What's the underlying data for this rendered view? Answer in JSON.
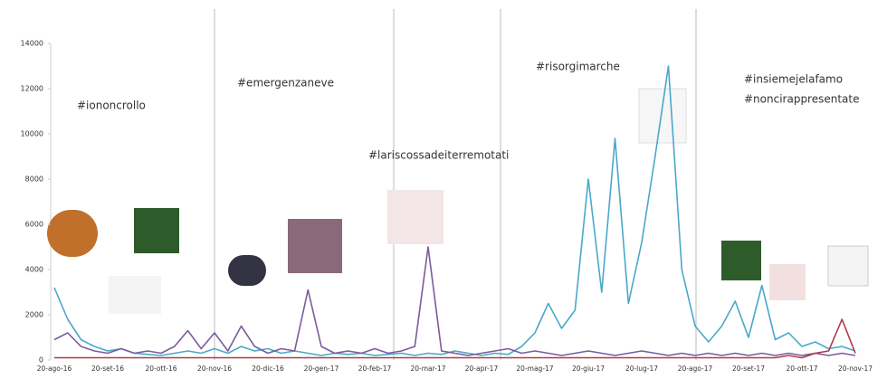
{
  "chart_data": {
    "type": "line",
    "categories": [
      "20-ago-16",
      null,
      null,
      null,
      "20-set-16",
      null,
      null,
      null,
      "20-ott-16",
      null,
      null,
      null,
      "20-nov-16",
      null,
      null,
      null,
      "20-dic-16",
      null,
      null,
      null,
      "20-gen-17",
      null,
      null,
      null,
      "20-feb-17",
      null,
      null,
      null,
      "20-mar-17",
      null,
      null,
      null,
      "20-apr-17",
      null,
      null,
      null,
      "20-mag-17",
      null,
      null,
      null,
      "20-giu-17",
      null,
      null,
      null,
      "20-lug-17",
      null,
      null,
      null,
      "20-ago-17",
      null,
      null,
      null,
      "20-set-17",
      null,
      null,
      null,
      "20-ott-17",
      null,
      null,
      null,
      "20-nov-17"
    ],
    "series": [
      {
        "color": "#4aa8c8",
        "values": [
          3200,
          1800,
          900,
          600,
          400,
          500,
          300,
          250,
          200,
          300,
          400,
          300,
          500,
          300,
          600,
          400,
          500,
          300,
          400,
          300,
          200,
          300,
          250,
          300,
          200,
          250,
          300,
          200,
          300,
          250,
          400,
          300,
          200,
          300,
          250,
          600,
          1200,
          2500,
          1400,
          2200,
          8000,
          3000,
          9800,
          2500,
          5200,
          9000,
          13000,
          4000,
          1500,
          800,
          1500,
          2600,
          1000,
          3300,
          900,
          1200,
          600,
          800,
          500,
          600,
          400
        ]
      },
      {
        "color": "#7a5c9c",
        "values": [
          900,
          1200,
          600,
          400,
          300,
          500,
          300,
          400,
          300,
          600,
          1300,
          500,
          1200,
          400,
          1500,
          600,
          300,
          500,
          400,
          3100,
          600,
          300,
          400,
          300,
          500,
          300,
          400,
          600,
          5000,
          400,
          300,
          200,
          300,
          400,
          500,
          300,
          400,
          300,
          200,
          300,
          400,
          300,
          200,
          300,
          400,
          300,
          200,
          300,
          200,
          300,
          200,
          300,
          200,
          300,
          200,
          300,
          200,
          300,
          200,
          300,
          200
        ]
      },
      {
        "color": "#b03a48",
        "values": [
          100,
          100,
          100,
          100,
          100,
          100,
          100,
          100,
          100,
          100,
          100,
          100,
          100,
          100,
          100,
          100,
          100,
          100,
          100,
          100,
          100,
          100,
          100,
          100,
          100,
          100,
          100,
          100,
          100,
          100,
          100,
          100,
          100,
          100,
          100,
          100,
          100,
          100,
          100,
          100,
          100,
          100,
          100,
          100,
          100,
          100,
          100,
          100,
          100,
          100,
          100,
          100,
          100,
          100,
          100,
          200,
          100,
          300,
          400,
          1800,
          300
        ]
      }
    ],
    "ylim": [
      0,
      14000
    ],
    "yticks": [
      0,
      2000,
      4000,
      6000,
      8000,
      10000,
      12000,
      14000
    ],
    "grid": false,
    "annotations": [
      "#iononcrollo",
      "#emergenzaneve",
      "#lariscossadeiterremotati",
      "#risorgimarche",
      "#insiemejelafamo",
      "#noncirappresentate"
    ]
  }
}
